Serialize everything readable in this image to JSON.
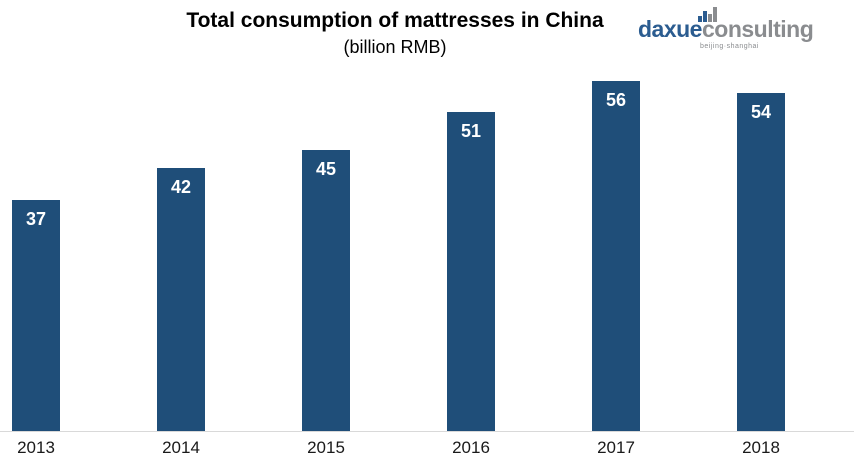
{
  "header": {
    "title": "Total consumption of mattresses in China",
    "subtitle": "(billion RMB)"
  },
  "logo": {
    "name": "daxue consulting",
    "part1": "daxue",
    "part2": "consulting",
    "tagline": "beijing·shanghai",
    "blue": "#2b5c90",
    "gray": "#8a8c8f",
    "icon_bars": [
      {
        "height": 6,
        "color": "#2b5c90"
      },
      {
        "height": 11,
        "color": "#2b5c90"
      },
      {
        "height": 8,
        "color": "#8a8c8f"
      },
      {
        "height": 15,
        "color": "#8a8c8f"
      }
    ]
  },
  "chart_data": {
    "type": "bar",
    "title": "Total consumption of mattresses in China",
    "subtitle": "(billion RMB)",
    "categories": [
      "2013",
      "2014",
      "2015",
      "2016",
      "2017",
      "2018"
    ],
    "values": [
      37,
      42,
      45,
      51,
      56,
      54
    ],
    "xlabel": "",
    "ylabel": "",
    "ylim": [
      0,
      60
    ],
    "grid": false,
    "legend_position": "none",
    "bar_color": "#1f4e79",
    "value_label_color": "#ffffff",
    "axis_line_color": "#d9d9d9",
    "value_labels_inside_top": true
  }
}
